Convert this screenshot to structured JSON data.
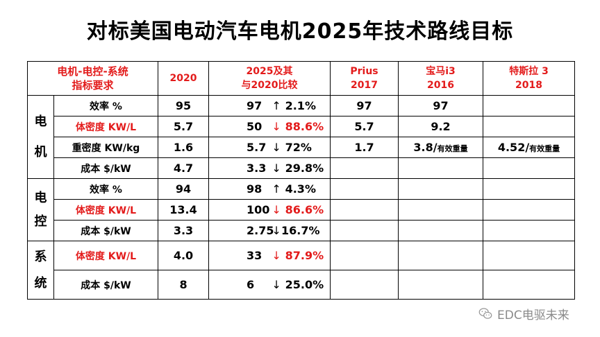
{
  "title": "对标美国电动汽车电机2025年技术路线目标",
  "header": {
    "c1_line1": "电机-电控-系统",
    "c1_line2": "指标要求",
    "c2": "2020",
    "c3_line1": "2025及其",
    "c3_line2": "与2020比较",
    "c4_line1": "Prius",
    "c4_line2": "2017",
    "c5_line1": "宝马i3",
    "c5_line2": "2016",
    "c6_line1": "特斯拉 3",
    "c6_line2": "2018"
  },
  "groups": {
    "motor": [
      "电",
      "机"
    ],
    "controller": [
      "电",
      "控"
    ],
    "system": [
      "系",
      "统"
    ]
  },
  "rows": [
    {
      "label": "效率 %",
      "red": false,
      "y2020": "95",
      "y2025": "97",
      "arrow": "↑",
      "change": "2.1%",
      "prius": "97",
      "bmw": "97",
      "tesla": ""
    },
    {
      "label": "体密度 KW/L",
      "red": true,
      "y2020": "5.7",
      "y2025": "50",
      "arrow": "↓",
      "change": "88.6%",
      "prius": "5.7",
      "bmw": "9.2",
      "tesla": ""
    },
    {
      "label": "重密度 KW/kg",
      "red": false,
      "y2020": "1.6",
      "y2025": "5.7",
      "arrow": "↓",
      "change": "72%",
      "prius": "1.7",
      "bmw": "3.8/",
      "bmw_note": "有效重量",
      "tesla": "4.52/",
      "tesla_note": "有效重量"
    },
    {
      "label": "成本 $/kW",
      "red": false,
      "y2020": "4.7",
      "y2025": "3.3",
      "arrow": "↓",
      "change": "29.8%",
      "prius": "",
      "bmw": "",
      "tesla": ""
    },
    {
      "label": "效率 %",
      "red": false,
      "y2020": "94",
      "y2025": "98",
      "arrow": "↑",
      "change": "4.3%",
      "prius": "",
      "bmw": "",
      "tesla": ""
    },
    {
      "label": "体密度 KW/L",
      "red": true,
      "y2020": "13.4",
      "y2025": "100",
      "arrow": "↓",
      "change": "86.6%",
      "prius": "",
      "bmw": "",
      "tesla": ""
    },
    {
      "label": "成本 $/kW",
      "red": false,
      "y2020": "3.3",
      "y2025": "2.75",
      "arrow": "↓",
      "change": "16.7%",
      "prius": "",
      "bmw": "",
      "tesla": ""
    },
    {
      "label": "体密度 KW/L",
      "red": true,
      "y2020": "4.0",
      "y2025": "33",
      "arrow": "↓",
      "change": "87.9%",
      "prius": "",
      "bmw": "",
      "tesla": ""
    },
    {
      "label": "成本 $/kW",
      "red": false,
      "y2020": "8",
      "y2025": "6",
      "arrow": "↓",
      "change": "25.0%",
      "prius": "",
      "bmw": "",
      "tesla": ""
    }
  ],
  "watermark": "EDC电驱未来",
  "watermark_icon": "wechat-icon"
}
